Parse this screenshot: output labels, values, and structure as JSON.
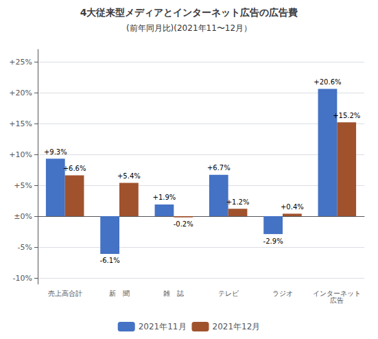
{
  "chart_data": {
    "type": "bar",
    "title": "4大従来型メディアとインターネット広告の広告費",
    "subtitle": "(前年同月比)(2021年11〜12月）",
    "categories": [
      "売上高合計",
      "新　聞",
      "雑　誌",
      "テレビ",
      "ラジオ",
      "インターネット広告"
    ],
    "series": [
      {
        "name": "2021年11月",
        "color": "#4472C4",
        "values": [
          9.3,
          -6.1,
          1.9,
          6.7,
          -2.9,
          20.6
        ],
        "value_labels": [
          "+9.3%",
          "-6.1%",
          "+1.9%",
          "+6.7%",
          "-2.9%",
          "+20.6%"
        ]
      },
      {
        "name": "2021年12月",
        "color": "#A0522D",
        "values": [
          6.6,
          5.4,
          -0.2,
          1.2,
          0.4,
          15.2
        ],
        "value_labels": [
          "+6.6%",
          "+5.4%",
          "-0.2%",
          "+1.2%",
          "+0.4%",
          "+15.2%"
        ]
      }
    ],
    "ylim": [
      -11,
      27
    ],
    "yticks": [
      {
        "value": -10,
        "label": "-10%"
      },
      {
        "value": -5,
        "label": "-5%"
      },
      {
        "value": 0,
        "label": "±0%"
      },
      {
        "value": 5,
        "label": "+5%"
      },
      {
        "value": 10,
        "label": "+10%"
      },
      {
        "value": 15,
        "label": "+15%"
      },
      {
        "value": 20,
        "label": "+20%"
      },
      {
        "value": 25,
        "label": "+25%"
      }
    ],
    "grid": true,
    "legend": "bottom",
    "data_labels": true
  }
}
